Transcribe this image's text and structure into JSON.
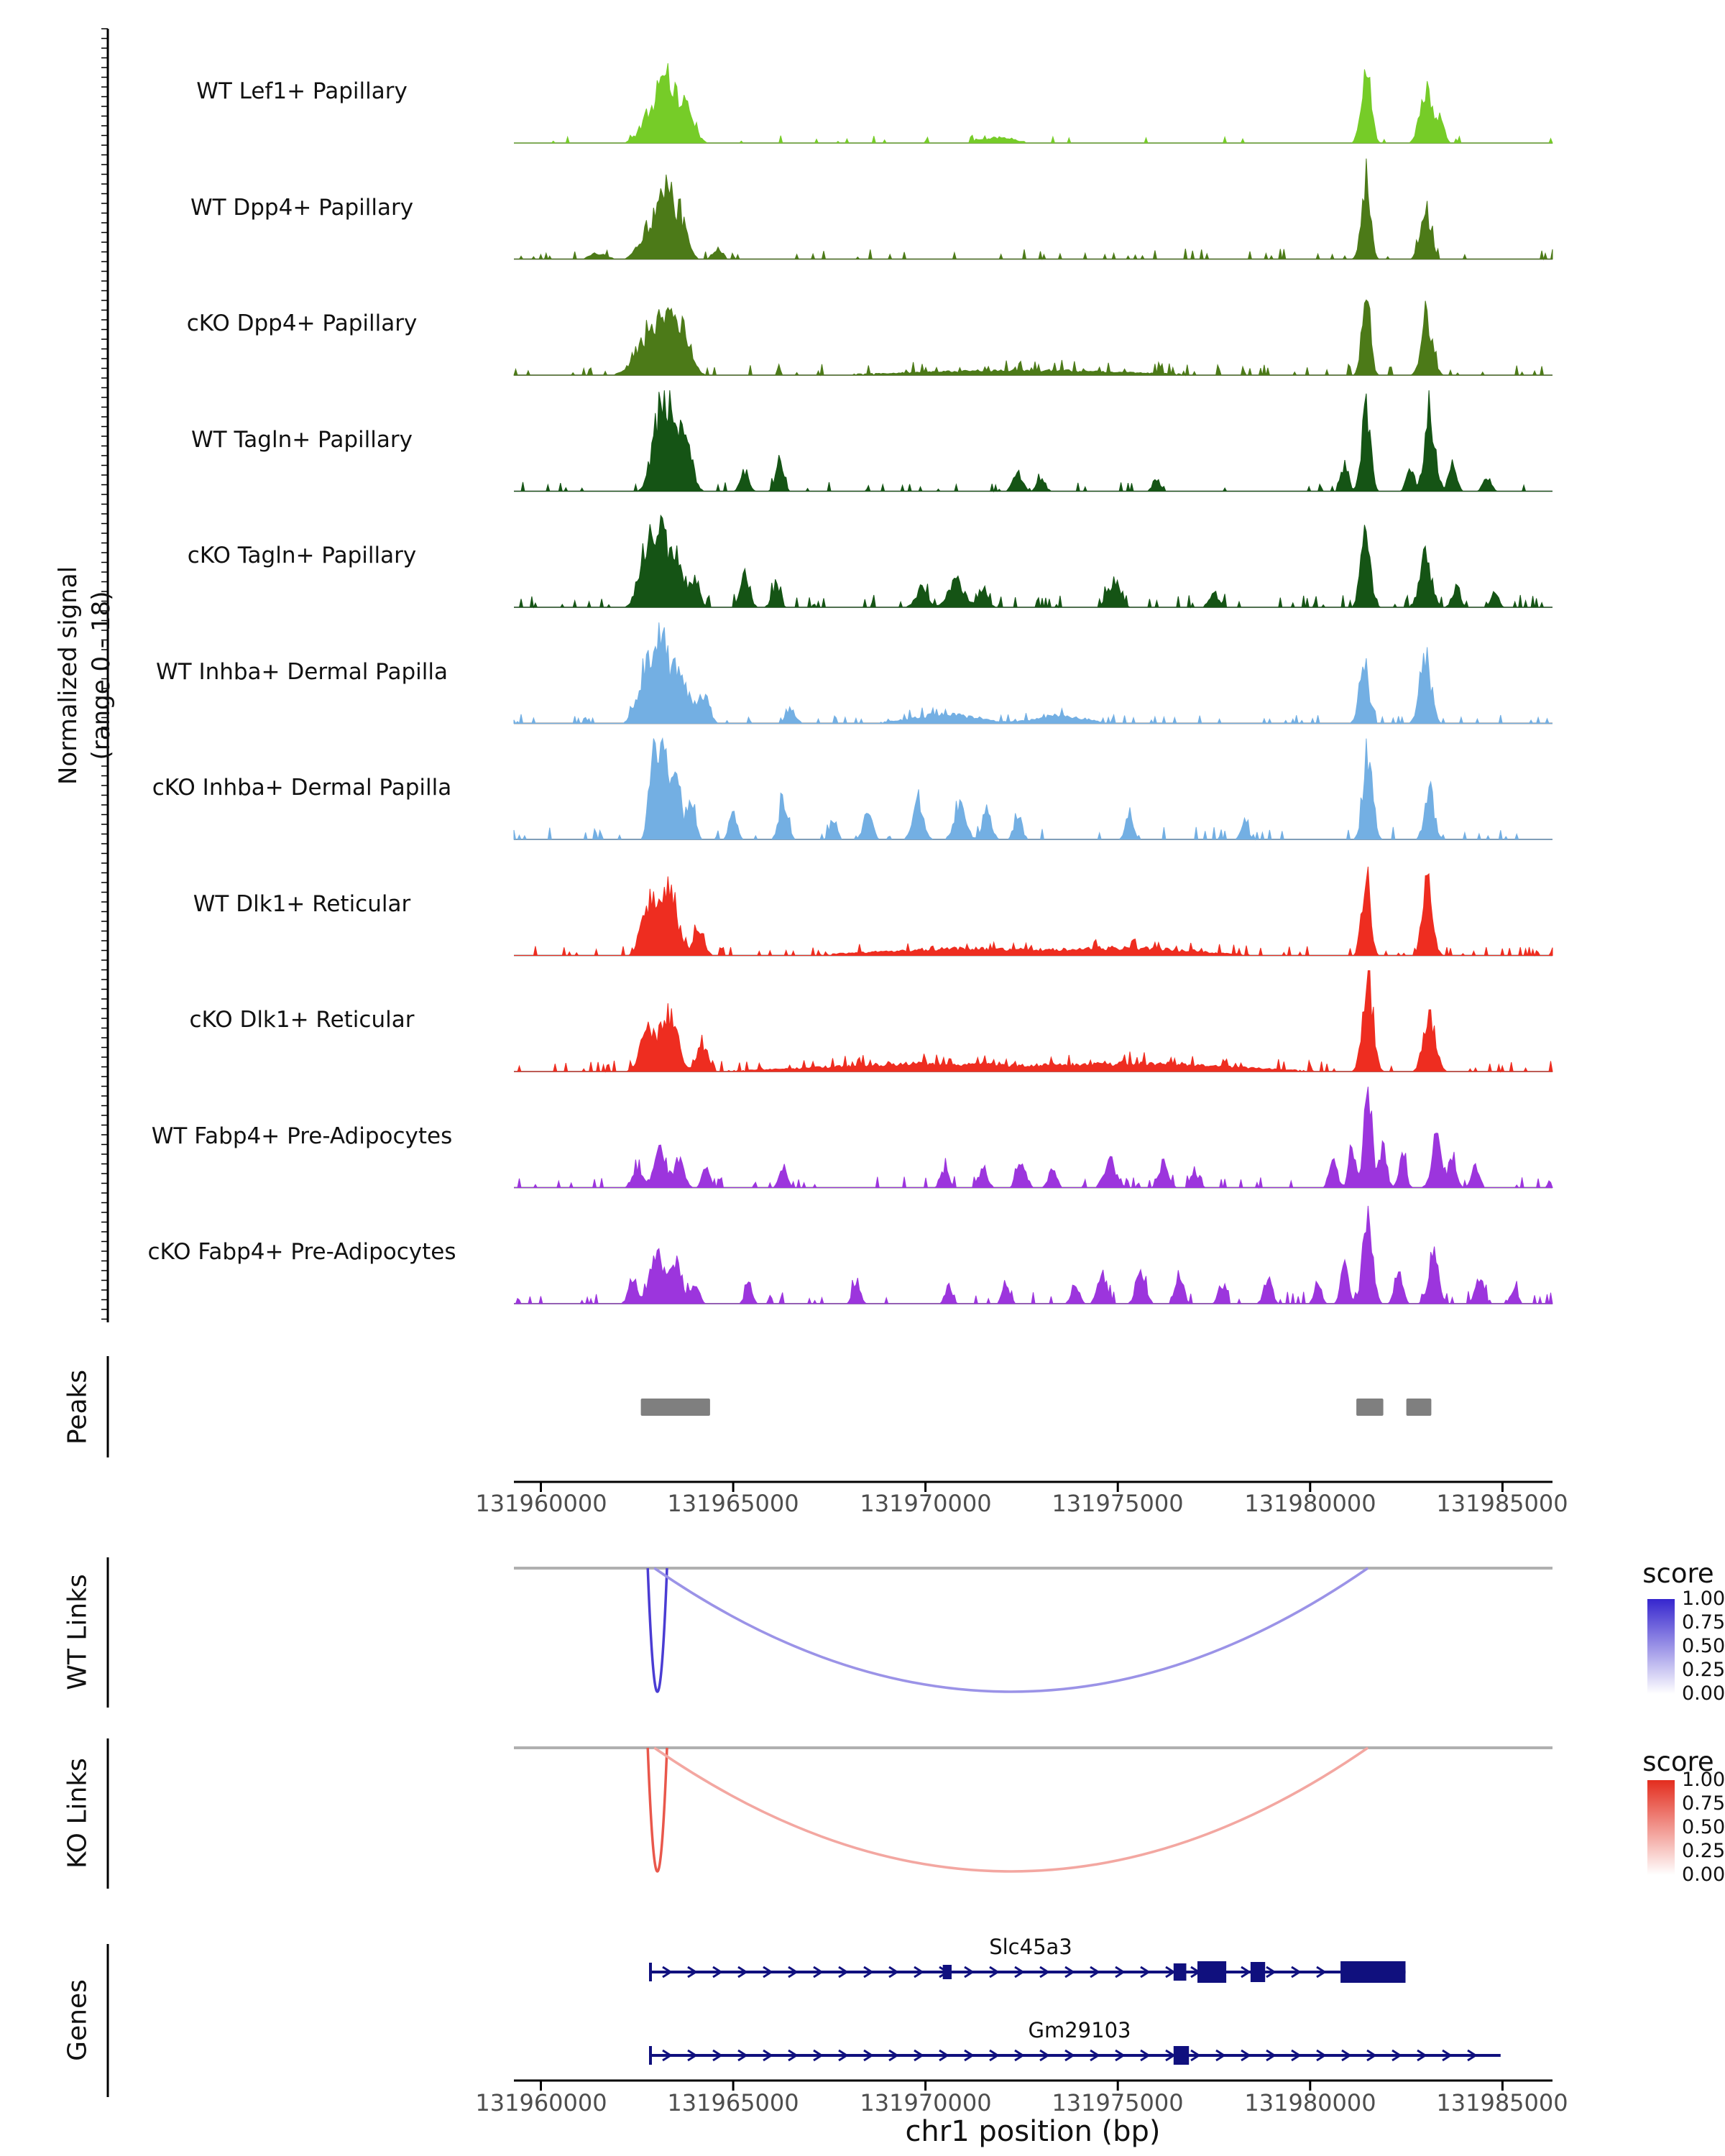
{
  "chart_data": {
    "type": "area",
    "subtype": "genome-coverage-tracks",
    "region": {
      "chrom": "chr1",
      "xlim": [
        131959300,
        131986300
      ]
    },
    "axis": {
      "xlabel": "chr1 position (bp)",
      "tick_positions": [
        131960000,
        131965000,
        131970000,
        131975000,
        131980000,
        131985000
      ],
      "tick_labels": [
        "131960000",
        "131965000",
        "131970000",
        "131975000",
        "131980000",
        "131985000"
      ]
    },
    "coverage": {
      "ylabel": "Normalized signal",
      "ylabel_sub": "(range 0 - 18)",
      "ymin": 0,
      "ymax": 18,
      "tracks": [
        {
          "name": "WT Lef1+ Papillary",
          "color": "#76CC28",
          "seed": 11,
          "noise_density": 0.05,
          "noise_amp": 0.05,
          "peaks": [
            [
              131962850,
              250,
              0.3
            ],
            [
              131963200,
              160,
              0.62
            ],
            [
              131963550,
              200,
              0.42
            ],
            [
              131963900,
              150,
              0.25
            ],
            [
              131971900,
              400,
              0.06
            ],
            [
              131981450,
              120,
              0.8
            ],
            [
              131983000,
              140,
              0.55
            ],
            [
              131983350,
              120,
              0.25
            ]
          ]
        },
        {
          "name": "WT Dpp4+ Papillary",
          "color": "#4C7A18",
          "seed": 22,
          "noise_density": 0.1,
          "noise_amp": 0.07,
          "peaks": [
            [
              131961500,
              200,
              0.06
            ],
            [
              131962850,
              250,
              0.35
            ],
            [
              131963250,
              150,
              0.72
            ],
            [
              131963600,
              180,
              0.45
            ],
            [
              131964600,
              120,
              0.12
            ],
            [
              131981450,
              110,
              0.82
            ],
            [
              131983000,
              130,
              0.55
            ]
          ]
        },
        {
          "name": "cKO Dpp4+ Papillary",
          "color": "#4C7A18",
          "seed": 33,
          "noise_density": 0.12,
          "noise_amp": 0.07,
          "peaks": [
            [
              131962750,
              300,
              0.4
            ],
            [
              131963250,
              200,
              0.6
            ],
            [
              131963700,
              200,
              0.45
            ],
            [
              131972500,
              2500,
              0.05
            ],
            [
              131981450,
              110,
              0.75
            ],
            [
              131983050,
              140,
              0.58
            ]
          ]
        },
        {
          "name": "WT Tagln+ Papillary",
          "color": "#155415",
          "seed": 44,
          "noise_density": 0.08,
          "noise_amp": 0.06,
          "peaks": [
            [
              131963050,
              180,
              0.62
            ],
            [
              131963400,
              200,
              0.8
            ],
            [
              131963800,
              150,
              0.45
            ],
            [
              131965300,
              100,
              0.22
            ],
            [
              131966200,
              100,
              0.28
            ],
            [
              131972400,
              120,
              0.18
            ],
            [
              131973000,
              100,
              0.15
            ],
            [
              131976000,
              100,
              0.12
            ],
            [
              131980900,
              90,
              0.3
            ],
            [
              131981450,
              110,
              0.92
            ],
            [
              131982600,
              90,
              0.28
            ],
            [
              131983100,
              130,
              0.85
            ],
            [
              131983700,
              100,
              0.28
            ],
            [
              131984600,
              100,
              0.15
            ]
          ]
        },
        {
          "name": "cKO Tagln+ Papillary",
          "color": "#155415",
          "seed": 55,
          "noise_density": 0.12,
          "noise_amp": 0.08,
          "peaks": [
            [
              131962650,
              150,
              0.48
            ],
            [
              131963050,
              180,
              0.78
            ],
            [
              131963500,
              180,
              0.62
            ],
            [
              131964000,
              120,
              0.3
            ],
            [
              131965300,
              120,
              0.32
            ],
            [
              131966100,
              100,
              0.22
            ],
            [
              131969900,
              150,
              0.2
            ],
            [
              131970800,
              200,
              0.28
            ],
            [
              131971500,
              120,
              0.2
            ],
            [
              131974900,
              150,
              0.28
            ],
            [
              131977500,
              120,
              0.15
            ],
            [
              131981450,
              120,
              0.78
            ],
            [
              131983000,
              150,
              0.52
            ],
            [
              131983800,
              100,
              0.22
            ],
            [
              131984800,
              90,
              0.15
            ]
          ]
        },
        {
          "name": "WT Inhba+ Dermal Papilla",
          "color": "#73AFE3",
          "seed": 66,
          "noise_density": 0.1,
          "noise_amp": 0.06,
          "peaks": [
            [
              131962700,
              200,
              0.5
            ],
            [
              131963100,
              200,
              0.78
            ],
            [
              131963600,
              200,
              0.6
            ],
            [
              131964200,
              150,
              0.32
            ],
            [
              131966500,
              120,
              0.15
            ],
            [
              131970500,
              800,
              0.09
            ],
            [
              131973500,
              600,
              0.08
            ],
            [
              131981400,
              120,
              0.62
            ],
            [
              131983000,
              140,
              0.7
            ]
          ]
        },
        {
          "name": "cKO Inhba+ Dermal Papilla",
          "color": "#73AFE3",
          "seed": 77,
          "noise_density": 0.1,
          "noise_amp": 0.08,
          "peaks": [
            [
              131962900,
              100,
              0.72
            ],
            [
              131963150,
              130,
              1.0
            ],
            [
              131963500,
              120,
              0.82
            ],
            [
              131963900,
              100,
              0.5
            ],
            [
              131965000,
              90,
              0.3
            ],
            [
              131966300,
              110,
              0.38
            ],
            [
              131967600,
              90,
              0.22
            ],
            [
              131968500,
              110,
              0.3
            ],
            [
              131969800,
              130,
              0.38
            ],
            [
              131970900,
              140,
              0.42
            ],
            [
              131971600,
              110,
              0.32
            ],
            [
              131972400,
              100,
              0.25
            ],
            [
              131975300,
              90,
              0.28
            ],
            [
              131978300,
              90,
              0.2
            ],
            [
              131981500,
              120,
              0.95
            ],
            [
              131983100,
              120,
              0.52
            ]
          ]
        },
        {
          "name": "WT Dlk1+ Reticular",
          "color": "#EE2D20",
          "seed": 88,
          "noise_density": 0.14,
          "noise_amp": 0.06,
          "peaks": [
            [
              131962850,
              200,
              0.55
            ],
            [
              131963350,
              200,
              0.68
            ],
            [
              131964100,
              130,
              0.3
            ],
            [
              131971000,
              2000,
              0.07
            ],
            [
              131975500,
              1500,
              0.07
            ],
            [
              131981450,
              110,
              0.82
            ],
            [
              131983050,
              130,
              0.72
            ]
          ]
        },
        {
          "name": "cKO Dlk1+ Reticular",
          "color": "#EE2D20",
          "seed": 99,
          "noise_density": 0.16,
          "noise_amp": 0.07,
          "peaks": [
            [
              131962800,
              200,
              0.45
            ],
            [
              131963350,
              200,
              0.6
            ],
            [
              131964200,
              130,
              0.28
            ],
            [
              131970000,
              2500,
              0.08
            ],
            [
              131976000,
              2000,
              0.08
            ],
            [
              131981500,
              130,
              1.0
            ],
            [
              131983100,
              150,
              0.6
            ]
          ]
        },
        {
          "name": "WT Fabp4+ Pre-Adipocytes",
          "color": "#9C35DD",
          "seed": 110,
          "noise_density": 0.12,
          "noise_amp": 0.07,
          "peaks": [
            [
              131962500,
              120,
              0.22
            ],
            [
              131963100,
              160,
              0.4
            ],
            [
              131963600,
              120,
              0.3
            ],
            [
              131964300,
              100,
              0.2
            ],
            [
              131966300,
              100,
              0.2
            ],
            [
              131970500,
              100,
              0.18
            ],
            [
              131971500,
              110,
              0.2
            ],
            [
              131972500,
              120,
              0.25
            ],
            [
              131973300,
              100,
              0.2
            ],
            [
              131974800,
              150,
              0.28
            ],
            [
              131976200,
              120,
              0.25
            ],
            [
              131977000,
              100,
              0.18
            ],
            [
              131980600,
              100,
              0.3
            ],
            [
              131981100,
              90,
              0.45
            ],
            [
              131981500,
              110,
              0.95
            ],
            [
              131981900,
              90,
              0.45
            ],
            [
              131982400,
              90,
              0.3
            ],
            [
              131983300,
              130,
              0.48
            ],
            [
              131983700,
              100,
              0.3
            ],
            [
              131984300,
              100,
              0.2
            ]
          ]
        },
        {
          "name": "cKO Fabp4+ Pre-Adipocytes",
          "color": "#9C35DD",
          "seed": 121,
          "noise_density": 0.12,
          "noise_amp": 0.08,
          "peaks": [
            [
              131962400,
              110,
              0.28
            ],
            [
              131963000,
              160,
              0.55
            ],
            [
              131963500,
              150,
              0.45
            ],
            [
              131964000,
              100,
              0.25
            ],
            [
              131965400,
              90,
              0.2
            ],
            [
              131968200,
              100,
              0.2
            ],
            [
              131970600,
              90,
              0.18
            ],
            [
              131972100,
              100,
              0.2
            ],
            [
              131973900,
              100,
              0.22
            ],
            [
              131974600,
              120,
              0.3
            ],
            [
              131975600,
              120,
              0.35
            ],
            [
              131976600,
              100,
              0.3
            ],
            [
              131977700,
              90,
              0.2
            ],
            [
              131978900,
              100,
              0.25
            ],
            [
              131980200,
              90,
              0.25
            ],
            [
              131980900,
              100,
              0.38
            ],
            [
              131981500,
              120,
              1.0
            ],
            [
              131982300,
              100,
              0.35
            ],
            [
              131983200,
              130,
              0.5
            ],
            [
              131984400,
              110,
              0.28
            ],
            [
              131985300,
              90,
              0.15
            ]
          ]
        }
      ]
    },
    "peaks": {
      "label": "Peaks",
      "color": "#7F7F7F",
      "intervals": [
        [
          131962600,
          131964400
        ],
        [
          131981200,
          131981900
        ],
        [
          131982500,
          131983150
        ]
      ]
    },
    "links": {
      "wt": {
        "label": "WT Links",
        "legend_title": "score",
        "legend_ticks": [
          "1.00",
          "0.75",
          "0.50",
          "0.25",
          "0.00"
        ],
        "color_high": "#3626CE",
        "color_low": "#FFFFFF",
        "arcs": [
          {
            "start": 131962780,
            "end": 131963280,
            "score": 0.9
          },
          {
            "start": 131962950,
            "end": 131981500,
            "score": 0.5
          }
        ]
      },
      "ko": {
        "label": "KO Links",
        "legend_title": "score",
        "legend_ticks": [
          "1.00",
          "0.75",
          "0.50",
          "0.25",
          "0.00"
        ],
        "color_high": "#E32D1E",
        "color_low": "#FFFFFF",
        "arcs": [
          {
            "start": 131962780,
            "end": 131963280,
            "score": 0.8
          },
          {
            "start": 131962950,
            "end": 131981500,
            "score": 0.42
          }
        ]
      }
    },
    "genes": {
      "label": "Genes",
      "color": "#10107E",
      "items": [
        {
          "name": "Slc45a3",
          "start": 131962850,
          "end": 131982480,
          "strand": "+",
          "exons": [
            [
              131970450,
              131970680,
              20
            ],
            [
              131976450,
              131976780,
              24
            ],
            [
              131977070,
              131977820,
              30
            ],
            [
              131978450,
              131978830,
              28
            ],
            [
              131980790,
              131982480,
              30
            ]
          ]
        },
        {
          "name": "Gm29103",
          "start": 131962850,
          "end": 131984950,
          "strand": "+",
          "exons": [
            [
              131976450,
              131976850,
              26
            ]
          ]
        }
      ]
    }
  }
}
